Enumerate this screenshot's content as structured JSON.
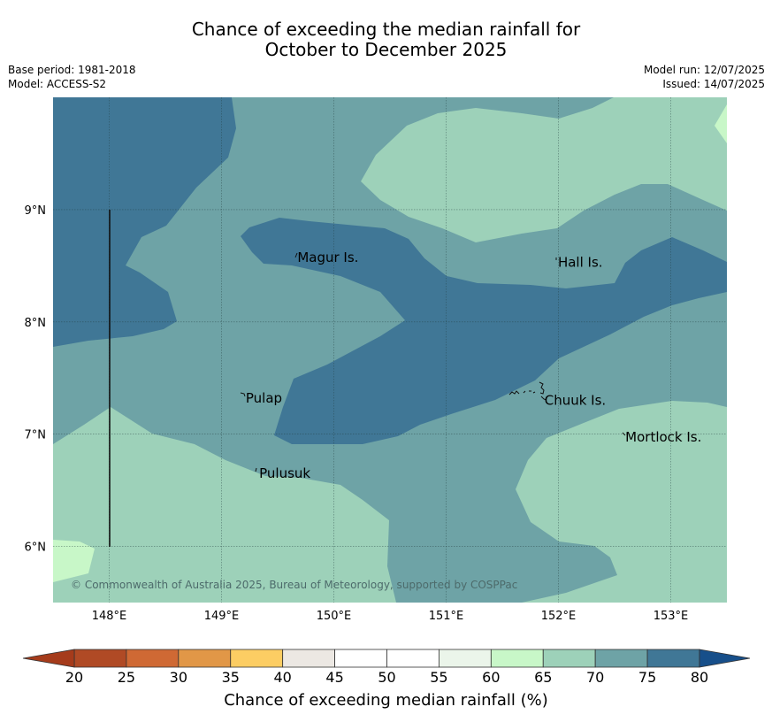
{
  "title_line1": "Chance of exceeding the median rainfall for",
  "title_line2": "October to December 2025",
  "meta_left": [
    "Base period: 1981-2018",
    "Model: ACCESS-S2"
  ],
  "meta_right": [
    "Model run: 12/07/2025",
    "Issued: 14/07/2025"
  ],
  "map": {
    "lon_range": [
      147.5,
      153.5
    ],
    "lat_range": [
      5.5,
      10.0
    ],
    "lon_ticks": [
      "148°E",
      "149°E",
      "150°E",
      "151°E",
      "152°E",
      "153°E"
    ],
    "lat_ticks": [
      "9°N",
      "8°N",
      "7°N",
      "6°N"
    ],
    "places": [
      {
        "name": "Magur Is.",
        "lon": 149.66,
        "lat": 8.58
      },
      {
        "name": "Hall Is.",
        "lon": 151.98,
        "lat": 8.54
      },
      {
        "name": "Pulap",
        "lon": 149.2,
        "lat": 7.33
      },
      {
        "name": "Chuuk Is.",
        "lon": 151.86,
        "lat": 7.31
      },
      {
        "name": "Mortlock Is.",
        "lon": 152.58,
        "lat": 6.98
      },
      {
        "name": "Pulusuk",
        "lon": 149.32,
        "lat": 6.66
      }
    ],
    "copyright": "© Commonwealth of Australia 2025, Bureau of Meteorology, supported by COSPPac",
    "zone_colors": {
      "60-65": "#c8f7c8",
      "65-70": "#9dd1b9",
      "70-75": "#6ea3a6",
      "75-80": "#407796"
    }
  },
  "colorbar": {
    "title": "Chance of exceeding median rainfall (%)",
    "ticks": [
      "20",
      "25",
      "30",
      "35",
      "40",
      "45",
      "50",
      "55",
      "60",
      "65",
      "70",
      "75",
      "80"
    ],
    "colors": [
      "#b04a25",
      "#cf6934",
      "#e19747",
      "#fccd63",
      "#ece8e3",
      "#ffffff",
      "#ffffff",
      "#ebf5ea",
      "#c8f7c8",
      "#9dd1b9",
      "#6ea3a6",
      "#407796"
    ],
    "low_extend_color": "#a53b1b",
    "high_extend_color": "#174f8a"
  }
}
